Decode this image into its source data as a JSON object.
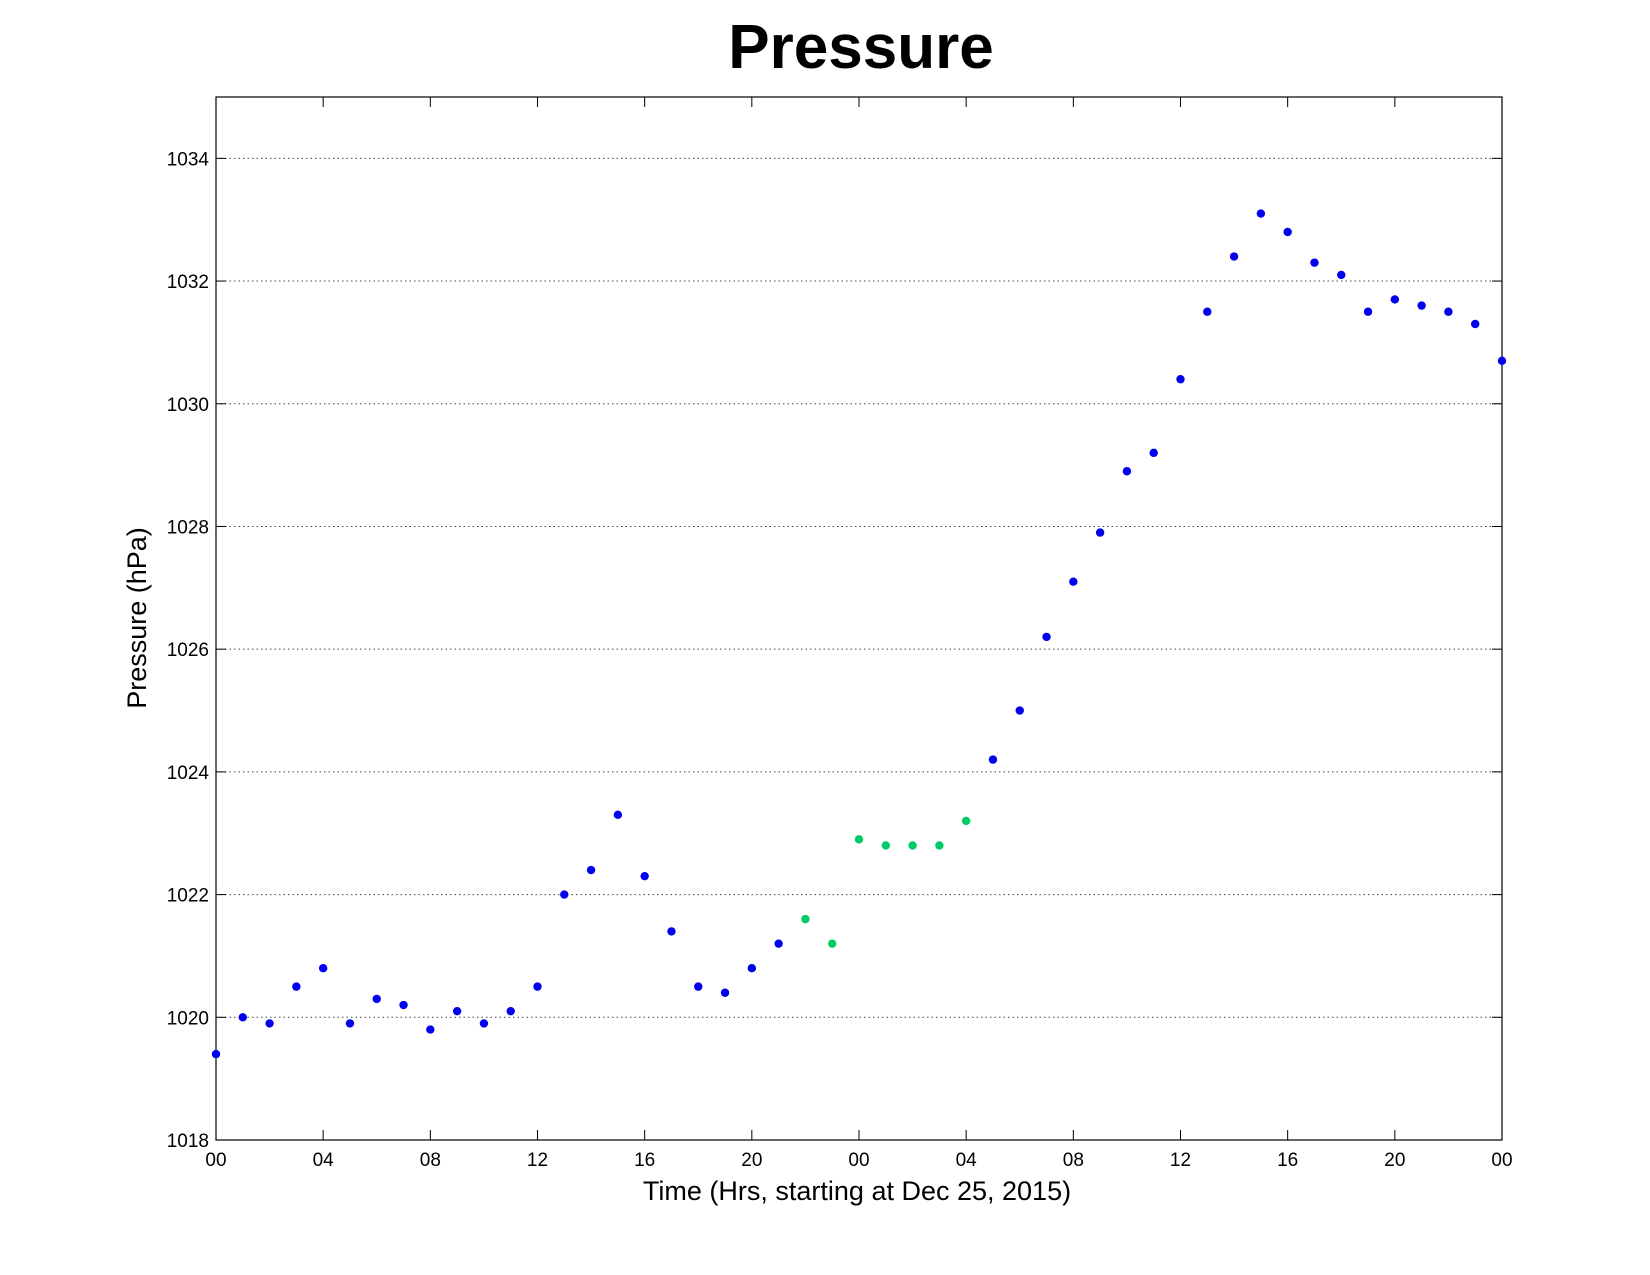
{
  "chart_data": {
    "type": "scatter",
    "title": "Pressure",
    "xlabel": "Time (Hrs, starting at Dec 25, 2015)",
    "ylabel": "Pressure (hPa)",
    "ylim": [
      1018,
      1035
    ],
    "xlim": [
      0,
      48
    ],
    "yticks": [
      1018,
      1020,
      1022,
      1024,
      1026,
      1028,
      1030,
      1032,
      1034
    ],
    "xtick_values": [
      0,
      4,
      8,
      12,
      16,
      20,
      24,
      28,
      32,
      36,
      40,
      44,
      48
    ],
    "xtick_labels": [
      "00",
      "04",
      "08",
      "12",
      "16",
      "20",
      "00",
      "04",
      "08",
      "12",
      "16",
      "20",
      "00"
    ],
    "grid": "horizontal dotted",
    "series": [
      {
        "color": "#0000ee",
        "x": [
          0,
          1,
          2,
          3,
          4,
          5,
          6,
          7,
          8,
          9,
          10,
          11,
          12,
          13,
          14,
          15,
          16,
          17,
          18,
          19,
          20,
          21,
          29,
          30,
          31,
          32,
          33,
          34,
          35,
          36,
          37,
          38,
          39,
          40,
          41,
          42,
          43,
          44,
          45,
          46,
          47,
          48
        ],
        "y": [
          1019.4,
          1020.0,
          1019.9,
          1020.5,
          1020.8,
          1019.9,
          1020.3,
          1020.2,
          1019.8,
          1020.1,
          1019.9,
          1020.1,
          1020.5,
          1022.0,
          1022.4,
          1023.3,
          1022.3,
          1021.4,
          1020.5,
          1020.4,
          1020.8,
          1021.2,
          1024.2,
          1025.0,
          1026.2,
          1027.1,
          1027.9,
          1028.9,
          1029.2,
          1030.4,
          1031.5,
          1032.4,
          1033.1,
          1032.8,
          1032.3,
          1032.1,
          1031.5,
          1031.7,
          1031.6,
          1031.5,
          1031.3,
          1030.7
        ]
      },
      {
        "color": "#00cc66",
        "x": [
          22,
          23,
          24,
          25,
          26,
          27,
          28
        ],
        "y": [
          1021.6,
          1021.2,
          1022.9,
          1022.8,
          1022.8,
          1022.8,
          1023.2
        ]
      }
    ]
  }
}
